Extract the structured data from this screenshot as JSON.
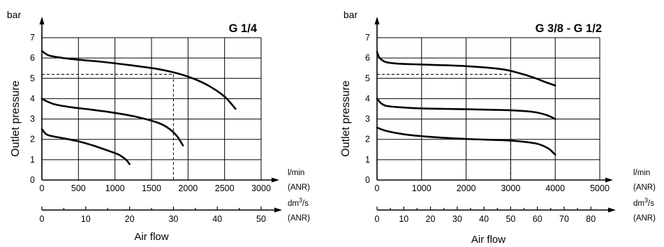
{
  "chart_data": [
    {
      "type": "line",
      "title": "G 1/4",
      "ylabel": "Outlet pressure",
      "yunit": "bar",
      "xlabel": "Air flow",
      "xunit_primary": [
        "l/min",
        "(ANR)"
      ],
      "xunit_secondary": [
        "dm3/s",
        "(ANR)"
      ],
      "ylim": [
        0,
        7
      ],
      "xlim": [
        0,
        3000
      ],
      "xticks": [
        "0",
        "500",
        "1000",
        "1500",
        "2000",
        "2500",
        "3000"
      ],
      "yticks": [
        "0",
        "1",
        "2",
        "3",
        "4",
        "5",
        "6",
        "7"
      ],
      "secondary_ticks": [
        "0",
        "10",
        "20",
        "30",
        "40",
        "50"
      ],
      "secondary_max": 50,
      "grid": true,
      "series": [
        {
          "x": [
            0,
            80,
            200,
            400,
            800,
            1200,
            1600,
            1900,
            2100,
            2300,
            2500,
            2650
          ],
          "y": [
            6.35,
            6.15,
            6.05,
            5.95,
            5.82,
            5.65,
            5.45,
            5.2,
            4.95,
            4.6,
            4.1,
            3.5
          ]
        },
        {
          "x": [
            0,
            80,
            200,
            400,
            700,
            1000,
            1300,
            1600,
            1750,
            1850,
            1930
          ],
          "y": [
            4.0,
            3.85,
            3.7,
            3.58,
            3.45,
            3.3,
            3.1,
            2.8,
            2.5,
            2.15,
            1.7
          ]
        },
        {
          "x": [
            0,
            60,
            150,
            300,
            500,
            700,
            900,
            1050,
            1150,
            1200
          ],
          "y": [
            2.5,
            2.25,
            2.15,
            2.05,
            1.9,
            1.7,
            1.45,
            1.25,
            1.0,
            0.78
          ]
        }
      ],
      "reference_lines": [
        {
          "x": 1800,
          "y": 5.2
        }
      ]
    },
    {
      "type": "line",
      "title": "G 3/8 - G 1/2",
      "ylabel": "Outlet pressure",
      "yunit": "bar",
      "xlabel": "Air flow",
      "xunit_primary": [
        "l/min",
        "(ANR)"
      ],
      "xunit_secondary": [
        "dm3/s",
        "(ANR)"
      ],
      "ylim": [
        0,
        7
      ],
      "xlim": [
        0,
        5000
      ],
      "xticks": [
        "0",
        "1000",
        "2000",
        "3000",
        "4000",
        "5000"
      ],
      "yticks": [
        "0",
        "1",
        "2",
        "3",
        "4",
        "5",
        "6",
        "7"
      ],
      "secondary_ticks": [
        "0",
        "10",
        "20",
        "30",
        "40",
        "50",
        "60",
        "70",
        "80"
      ],
      "secondary_max": 83.33,
      "grid": true,
      "series": [
        {
          "x": [
            0,
            60,
            200,
            500,
            1000,
            2000,
            2800,
            3200,
            3500,
            3800,
            4000
          ],
          "y": [
            6.3,
            6.0,
            5.8,
            5.72,
            5.68,
            5.6,
            5.45,
            5.25,
            5.05,
            4.8,
            4.65
          ]
        },
        {
          "x": [
            0,
            80,
            200,
            500,
            1000,
            2000,
            3000,
            3500,
            3800,
            4000
          ],
          "y": [
            4.0,
            3.8,
            3.65,
            3.58,
            3.52,
            3.48,
            3.43,
            3.35,
            3.2,
            3.0
          ]
        },
        {
          "x": [
            0,
            200,
            600,
            1200,
            2000,
            2800,
            3200,
            3600,
            3850,
            3950,
            4000
          ],
          "y": [
            2.58,
            2.42,
            2.25,
            2.12,
            2.02,
            1.96,
            1.9,
            1.78,
            1.55,
            1.35,
            1.25
          ]
        }
      ],
      "reference_lines": [
        {
          "x": 3000,
          "y": 5.2
        }
      ]
    }
  ]
}
